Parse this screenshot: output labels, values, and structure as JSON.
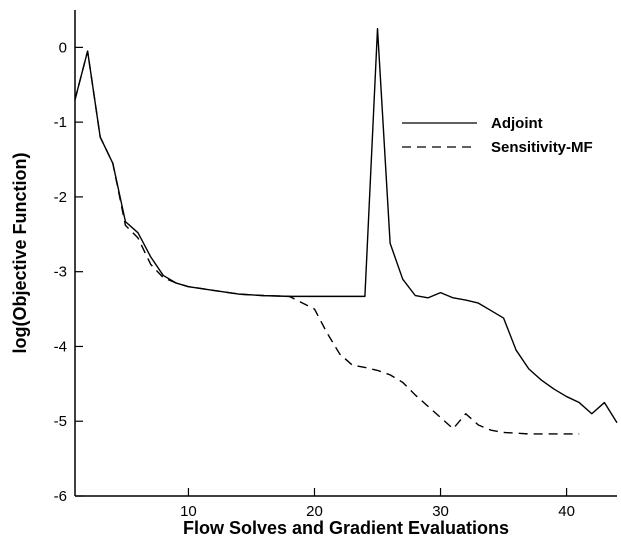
{
  "chart_data": {
    "type": "line",
    "title": "",
    "xlabel": "Flow Solves and Gradient Evaluations",
    "ylabel": "log(Objective Function)",
    "xlim": [
      1,
      44
    ],
    "ylim": [
      -6,
      0.5
    ],
    "xticks": [
      10,
      20,
      30,
      40
    ],
    "yticks": [
      0,
      -1,
      -2,
      -3,
      -4,
      -5,
      -6
    ],
    "grid": false,
    "legend_position": "top-right",
    "series": [
      {
        "name": "Adjoint",
        "style": "solid",
        "color": "#000000",
        "x": [
          1,
          2,
          3,
          4,
          5,
          6,
          7,
          8,
          9,
          10,
          12,
          14,
          16,
          18,
          20,
          22,
          24,
          25,
          26,
          27,
          28,
          29,
          30,
          31,
          32,
          33,
          34,
          35,
          36,
          37,
          38,
          39,
          40,
          41,
          42,
          43,
          44
        ],
        "y": [
          -0.7,
          -0.05,
          -1.2,
          -1.55,
          -2.33,
          -2.48,
          -2.8,
          -3.05,
          -3.15,
          -3.2,
          -3.25,
          -3.3,
          -3.32,
          -3.33,
          -3.33,
          -3.33,
          -3.33,
          0.25,
          -2.62,
          -3.1,
          -3.32,
          -3.35,
          -3.28,
          -3.35,
          -3.38,
          -3.42,
          -3.52,
          -3.62,
          -4.05,
          -4.3,
          -4.45,
          -4.57,
          -4.67,
          -4.75,
          -4.9,
          -4.75,
          -5.02
        ]
      },
      {
        "name": "Sensitivity-MF",
        "style": "dashed",
        "color": "#000000",
        "x": [
          1,
          2,
          3,
          4,
          5,
          6,
          7,
          8,
          9,
          10,
          12,
          14,
          16,
          18,
          20,
          21,
          22,
          23,
          24,
          25,
          26,
          27,
          28,
          29,
          30,
          31,
          32,
          33,
          34,
          35,
          36,
          37,
          38,
          39,
          40,
          41
        ],
        "y": [
          -0.7,
          -0.05,
          -1.2,
          -1.55,
          -2.38,
          -2.55,
          -2.9,
          -3.08,
          -3.15,
          -3.2,
          -3.25,
          -3.3,
          -3.32,
          -3.33,
          -3.5,
          -3.82,
          -4.1,
          -4.25,
          -4.28,
          -4.32,
          -4.38,
          -4.48,
          -4.65,
          -4.8,
          -4.95,
          -5.1,
          -4.9,
          -5.05,
          -5.12,
          -5.15,
          -5.16,
          -5.17,
          -5.17,
          -5.17,
          -5.17,
          -5.17
        ]
      }
    ]
  }
}
